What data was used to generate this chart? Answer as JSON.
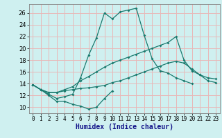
{
  "xlabel": "Humidex (Indice chaleur)",
  "bg_color": "#cff0f0",
  "grid_color": "#e8b8b8",
  "line_color": "#1a7a6e",
  "xlim": [
    -0.5,
    23.5
  ],
  "ylim": [
    9.0,
    27.5
  ],
  "yticks": [
    10,
    12,
    14,
    16,
    18,
    20,
    22,
    24,
    26
  ],
  "xticks": [
    0,
    1,
    2,
    3,
    4,
    5,
    6,
    7,
    8,
    9,
    10,
    11,
    12,
    13,
    14,
    15,
    16,
    17,
    18,
    19,
    20,
    21,
    22,
    23
  ],
  "s1_x": [
    0,
    1,
    2,
    3,
    4,
    5,
    6,
    7,
    8,
    9,
    10
  ],
  "s1_y": [
    13.8,
    13.0,
    12.0,
    11.0,
    11.0,
    10.5,
    10.2,
    9.7,
    10.0,
    11.5,
    12.8
  ],
  "s2_x": [
    0,
    1,
    2,
    3,
    4,
    5,
    6,
    7,
    8,
    9,
    10,
    11,
    12,
    13,
    14,
    15,
    16,
    17,
    18,
    19,
    20,
    21,
    22,
    23
  ],
  "s2_y": [
    13.8,
    13.0,
    12.5,
    12.5,
    12.8,
    13.0,
    13.2,
    13.3,
    13.5,
    13.7,
    14.2,
    14.5,
    15.0,
    15.5,
    16.0,
    16.5,
    17.0,
    17.5,
    17.8,
    17.5,
    16.5,
    15.5,
    14.5,
    14.2
  ],
  "s3_x": [
    0,
    1,
    2,
    3,
    4,
    5,
    6,
    7,
    8,
    9,
    10,
    11,
    12,
    13,
    14,
    15,
    16,
    17,
    18,
    19,
    20,
    21,
    22,
    23
  ],
  "s3_y": [
    13.8,
    13.0,
    12.5,
    12.5,
    13.0,
    13.5,
    14.5,
    15.2,
    16.0,
    16.8,
    17.5,
    18.0,
    18.5,
    19.0,
    19.5,
    20.0,
    20.5,
    21.0,
    22.0,
    18.0,
    16.2,
    15.5,
    15.0,
    14.8
  ],
  "s4_x": [
    0,
    1,
    2,
    3,
    4,
    5,
    6,
    7,
    8,
    9,
    10,
    11,
    12,
    13,
    14,
    15,
    16,
    17,
    18,
    19,
    20,
    21,
    22,
    23
  ],
  "s4_y": [
    13.8,
    13.0,
    12.2,
    11.5,
    11.8,
    12.2,
    15.0,
    18.8,
    21.8,
    26.0,
    25.0,
    26.2,
    26.5,
    26.8,
    22.2,
    18.2,
    16.2,
    15.8,
    15.0,
    14.5,
    14.0,
    null,
    null,
    null
  ]
}
